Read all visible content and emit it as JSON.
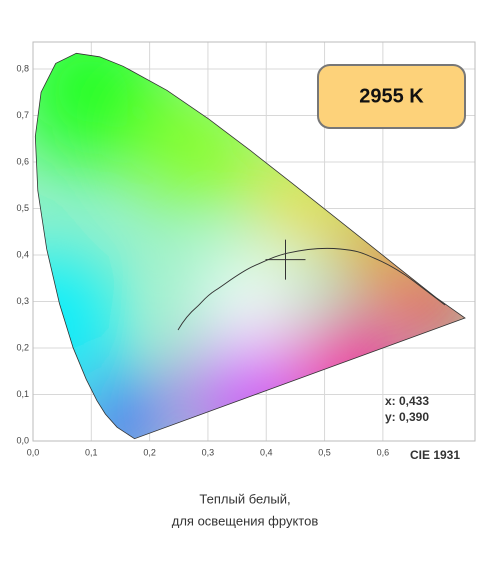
{
  "chart_data": {
    "type": "scatter",
    "title": "CIE 1931",
    "badge": "2955 K",
    "caption": [
      "Теплый белый,",
      "для освещения фруктов"
    ],
    "x": [
      0.433
    ],
    "values": [
      0.39
    ],
    "x_labels": [
      "x: 0,433"
    ],
    "value_labels": [
      "y: 0,390"
    ],
    "color": "#333333",
    "xlim": [
      0,
      0.758
    ],
    "ylim": [
      0,
      0.858
    ],
    "xticks": [
      {
        "value": 0,
        "label": "0,0"
      },
      {
        "value": 0.1,
        "label": "0,1"
      },
      {
        "value": 0.2,
        "label": "0,2"
      },
      {
        "value": 0.3,
        "label": "0,3"
      },
      {
        "value": 0.4,
        "label": "0,4"
      },
      {
        "value": 0.5,
        "label": "0,5"
      },
      {
        "value": 0.6,
        "label": "0,6"
      }
    ],
    "yticks": [
      {
        "value": 0,
        "label": "0,0"
      },
      {
        "value": 0.1,
        "label": "0,1"
      },
      {
        "value": 0.2,
        "label": "0,2"
      },
      {
        "value": 0.3,
        "label": "0,3"
      },
      {
        "value": 0.4,
        "label": "0,4"
      },
      {
        "value": 0.5,
        "label": "0,5"
      },
      {
        "value": 0.6,
        "label": "0,6"
      },
      {
        "value": 0.7,
        "label": "0,7"
      },
      {
        "value": 0.8,
        "label": "0,8"
      }
    ],
    "grid": true
  }
}
